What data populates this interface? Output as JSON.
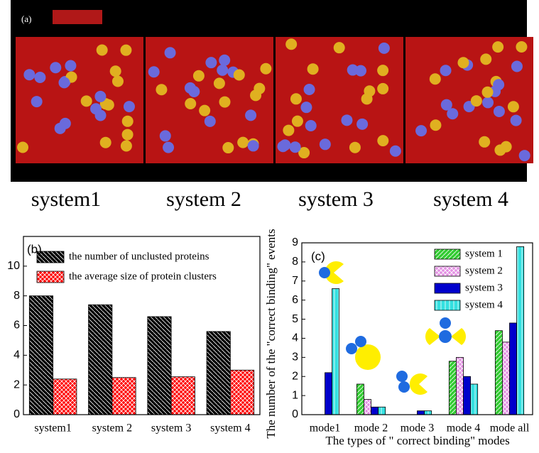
{
  "panel_a": {
    "label": "(a)",
    "captions": [
      "system1",
      "system 2",
      "system 3",
      "system 4"
    ]
  },
  "chart_data": [
    {
      "type": "bar",
      "label": "(b)",
      "categories": [
        "system1",
        "system 2",
        "system 3",
        "system 4"
      ],
      "series": [
        {
          "name": "the number of unclusted proteins",
          "color": "#000000",
          "values": [
            8,
            7.4,
            6.6,
            5.6
          ]
        },
        {
          "name": "the average size of protein clusters",
          "color": "#ff0000",
          "values": [
            2.4,
            2.5,
            2.55,
            3
          ]
        }
      ],
      "ylim": [
        0,
        12
      ],
      "yticks": [
        0,
        2,
        4,
        6,
        8,
        10
      ]
    },
    {
      "type": "bar",
      "label": "(c)",
      "x_label": "The types of \" correct binding\" modes",
      "y_label": "The number of the \"correct binding\" events",
      "categories": [
        "mode1",
        "mode 2",
        "mode 3",
        "mode 4",
        "mode all"
      ],
      "series": [
        {
          "name": "system 1",
          "color": "#33cc33",
          "values": [
            0,
            1.6,
            0,
            2.8,
            4.4
          ]
        },
        {
          "name": "system 2",
          "color": "#e38fe3",
          "values": [
            0,
            0.8,
            0,
            3.0,
            3.8
          ]
        },
        {
          "name": "system 3",
          "color": "#0000cc",
          "values": [
            2.2,
            0.4,
            0.2,
            2.0,
            4.8
          ]
        },
        {
          "name": "system 4",
          "color": "#33e0e0",
          "values": [
            6.6,
            0.4,
            0.2,
            1.6,
            8.8
          ]
        }
      ],
      "ylim": [
        0,
        9
      ],
      "yticks": [
        0,
        1,
        2,
        3,
        4,
        5,
        6,
        7,
        8,
        9
      ]
    }
  ]
}
